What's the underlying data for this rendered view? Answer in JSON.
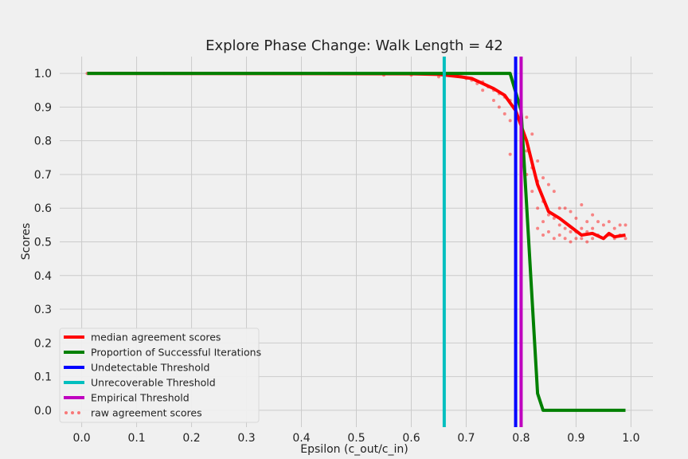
{
  "chart_data": {
    "type": "line",
    "title": "Explore Phase Change: Walk Length = 42",
    "xlabel": "Epsilon (c_out/c_in)",
    "ylabel": "Scores",
    "xlim": [
      -0.04,
      1.04
    ],
    "ylim": [
      -0.05,
      1.05
    ],
    "xticks": [
      0.0,
      0.1,
      0.2,
      0.3,
      0.4,
      0.5,
      0.6,
      0.7,
      0.8,
      0.9,
      1.0
    ],
    "xtick_labels": [
      "0.0",
      "0.1",
      "0.2",
      "0.3",
      "0.4",
      "0.5",
      "0.6",
      "0.7",
      "0.8",
      "0.9",
      "1.0"
    ],
    "yticks": [
      0.0,
      0.1,
      0.2,
      0.3,
      0.4,
      0.5,
      0.6,
      0.7,
      0.8,
      0.9,
      1.0
    ],
    "ytick_labels": [
      "0.0",
      "0.1",
      "0.2",
      "0.3",
      "0.4",
      "0.5",
      "0.6",
      "0.7",
      "0.8",
      "0.9",
      "1.0"
    ],
    "grid": true,
    "legend_position": "bottom-left",
    "series": [
      {
        "name": "median agreement scores",
        "color": "#ff0000",
        "style": "line",
        "x": [
          0.01,
          0.6,
          0.65,
          0.69,
          0.71,
          0.73,
          0.75,
          0.77,
          0.79,
          0.81,
          0.83,
          0.85,
          0.87,
          0.89,
          0.91,
          0.93,
          0.95,
          0.96,
          0.97,
          0.99
        ],
        "y": [
          1.0,
          0.999,
          0.997,
          0.99,
          0.985,
          0.97,
          0.955,
          0.935,
          0.89,
          0.8,
          0.67,
          0.59,
          0.57,
          0.545,
          0.52,
          0.525,
          0.51,
          0.525,
          0.515,
          0.52
        ]
      },
      {
        "name": "Proportion of Successful Iterations",
        "color": "#008000",
        "style": "line",
        "x": [
          0.01,
          0.78,
          0.8,
          0.83,
          0.84,
          0.99
        ],
        "y": [
          1.0,
          1.0,
          0.89,
          0.05,
          0.0,
          0.0
        ]
      }
    ],
    "thresholds": [
      {
        "name": "Undetectable Threshold",
        "color": "#0000ff",
        "x": 0.79
      },
      {
        "name": "Unrecoverable Threshold",
        "color": "#00bfbf",
        "x": 0.66
      },
      {
        "name": "Empirical Threshold",
        "color": "#bf00bf",
        "x": 0.8
      }
    ],
    "scatter": {
      "name": "raw agreement scores",
      "color": "#ff0000",
      "opacity": 0.45,
      "x": [
        0.01,
        0.05,
        0.1,
        0.15,
        0.2,
        0.25,
        0.3,
        0.35,
        0.4,
        0.45,
        0.5,
        0.55,
        0.6,
        0.65,
        0.69,
        0.7,
        0.71,
        0.72,
        0.73,
        0.73,
        0.74,
        0.75,
        0.75,
        0.76,
        0.76,
        0.77,
        0.77,
        0.78,
        0.78,
        0.78,
        0.79,
        0.79,
        0.8,
        0.8,
        0.81,
        0.81,
        0.81,
        0.82,
        0.82,
        0.82,
        0.83,
        0.83,
        0.83,
        0.83,
        0.84,
        0.84,
        0.84,
        0.84,
        0.85,
        0.85,
        0.85,
        0.86,
        0.86,
        0.86,
        0.87,
        0.87,
        0.87,
        0.88,
        0.88,
        0.88,
        0.89,
        0.89,
        0.89,
        0.9,
        0.9,
        0.9,
        0.91,
        0.91,
        0.91,
        0.92,
        0.92,
        0.92,
        0.93,
        0.93,
        0.93,
        0.94,
        0.94,
        0.95,
        0.95,
        0.96,
        0.96,
        0.97,
        0.97,
        0.98,
        0.98,
        0.99,
        0.99
      ],
      "y": [
        1.0,
        1.0,
        1.0,
        1.0,
        1.0,
        1.0,
        1.0,
        1.0,
        1.0,
        1.0,
        1.0,
        0.995,
        0.995,
        0.99,
        0.99,
        0.985,
        0.98,
        0.97,
        0.975,
        0.95,
        0.96,
        0.95,
        0.92,
        0.94,
        0.9,
        0.93,
        0.88,
        0.92,
        0.86,
        0.76,
        0.9,
        0.84,
        0.89,
        0.8,
        0.87,
        0.77,
        0.7,
        0.82,
        0.72,
        0.65,
        0.74,
        0.68,
        0.6,
        0.54,
        0.69,
        0.62,
        0.56,
        0.52,
        0.67,
        0.58,
        0.53,
        0.65,
        0.57,
        0.51,
        0.6,
        0.55,
        0.52,
        0.6,
        0.54,
        0.51,
        0.59,
        0.53,
        0.5,
        0.57,
        0.53,
        0.51,
        0.61,
        0.54,
        0.51,
        0.56,
        0.53,
        0.5,
        0.58,
        0.54,
        0.51,
        0.56,
        0.52,
        0.55,
        0.51,
        0.56,
        0.52,
        0.54,
        0.51,
        0.55,
        0.52,
        0.55,
        0.51
      ]
    },
    "legend": [
      {
        "label": "median agreement scores",
        "color": "#ff0000",
        "kind": "line"
      },
      {
        "label": "Proportion of Successful Iterations",
        "color": "#008000",
        "kind": "line"
      },
      {
        "label": "Undetectable Threshold",
        "color": "#0000ff",
        "kind": "line"
      },
      {
        "label": "Unrecoverable Threshold",
        "color": "#00bfbf",
        "kind": "line"
      },
      {
        "label": "Empirical Threshold",
        "color": "#bf00bf",
        "kind": "line"
      },
      {
        "label": "raw agreement scores",
        "color": "#ff0000",
        "kind": "dots"
      }
    ]
  }
}
